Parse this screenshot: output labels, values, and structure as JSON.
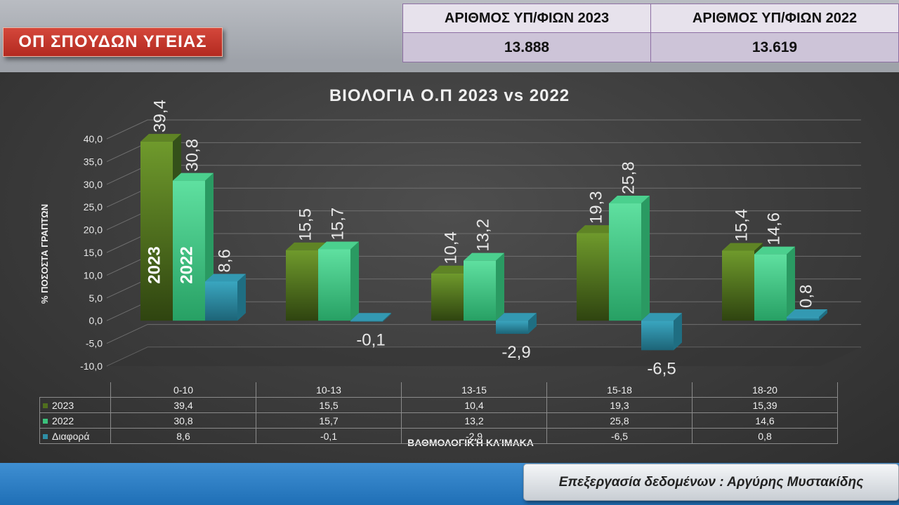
{
  "header": {
    "tag": "ΟΠ ΣΠΟΥΔΩΝ ΥΓΕΙΑΣ",
    "count_headers": [
      "ΑΡΙΘΜΟΣ ΥΠ/ΦΙΩΝ 2023",
      "ΑΡΙΘΜΟΣ ΥΠ/ΦΙΩΝ 2022"
    ],
    "count_values": [
      "13.888",
      "13.619"
    ]
  },
  "credit": "Επεξεργασία δεδομένων : Αργύρης Μυστακίδης",
  "colors": {
    "s2023": "#4f6f1e",
    "s2022": "#3bc27c",
    "diff": "#2e8fa6",
    "panel": "#3c3c3c"
  },
  "chart_data": {
    "type": "bar",
    "title": "ΒΙΟΛΟΓΙΑ Ο.Π 2023 vs 2022",
    "xlabel": "ΒΑΘΜΟΛΟΓΙΚΉ ΚΛΊΜΑΚΑ",
    "ylabel": "% ΠΟΣΟΣΤΑ ΓΡΑΠΤΩΝ",
    "ylim": [
      -10,
      40
    ],
    "yticks": [
      "40,0",
      "35,0",
      "30,0",
      "25,0",
      "20,0",
      "15,0",
      "10,0",
      "5,0",
      "0,0",
      "-5,0",
      "-10,0"
    ],
    "categories": [
      "0-10",
      "10-13",
      "13-15",
      "15-18",
      "18-20"
    ],
    "series": [
      {
        "name": "2023",
        "values": [
          39.4,
          15.5,
          10.4,
          19.3,
          15.39
        ],
        "labels": [
          "39,4",
          "15,5",
          "10,4",
          "19,3",
          "15,4"
        ],
        "table": [
          "39,4",
          "15,5",
          "10,4",
          "19,3",
          "15,39"
        ]
      },
      {
        "name": "2022",
        "values": [
          30.8,
          15.7,
          13.2,
          25.8,
          14.6
        ],
        "labels": [
          "30,8",
          "15,7",
          "13,2",
          "25,8",
          "14,6"
        ],
        "table": [
          "30,8",
          "15,7",
          "13,2",
          "25,8",
          "14,6"
        ]
      },
      {
        "name": "Διαφορά",
        "values": [
          8.6,
          -0.1,
          -2.9,
          -6.5,
          0.8
        ],
        "labels": [
          "8,6",
          "-0,1",
          "-2,9",
          "-6,5",
          "0,8"
        ],
        "table": [
          "8,6",
          "-0,1",
          "-2,9",
          "-6,5",
          "0,8"
        ]
      }
    ],
    "bar_annotations": [
      "2023",
      "2022"
    ],
    "grid": true,
    "legend": "data-table"
  }
}
